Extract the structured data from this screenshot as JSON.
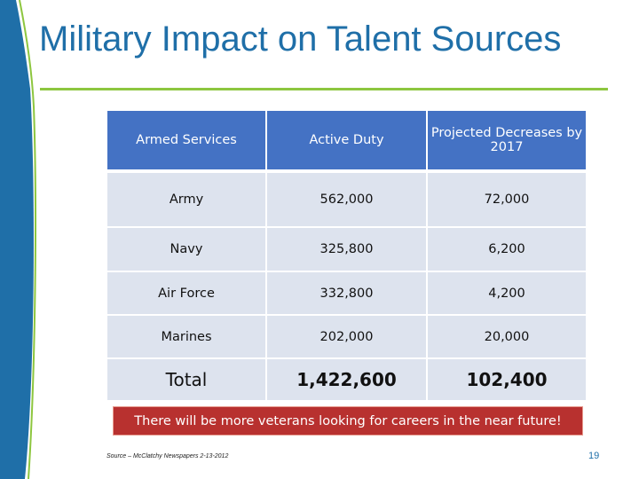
{
  "slide": {
    "title": "Military Impact on Talent Sources",
    "banner": "There will be more veterans looking for careers in the near future!",
    "source": "Source – McClatchy Newspapers 2-13-2012",
    "page_number": "19"
  },
  "table": {
    "headers": [
      "Armed Services",
      "Active Duty",
      "Projected Decreases by 2017"
    ],
    "rows": [
      [
        "Army",
        "562,000",
        "72,000"
      ],
      [
        "Navy",
        "325,800",
        "6,200"
      ],
      [
        "Air Force",
        "332,800",
        "4,200"
      ],
      [
        "Marines",
        "202,000",
        "20,000"
      ]
    ],
    "total": [
      "Total",
      "1,422,600",
      "102,400"
    ]
  },
  "colors": {
    "title": "#1f6fa8",
    "header_fill": "#4472c4",
    "cell_fill": "#dde3ee",
    "rule": "#8dc63f",
    "banner": "#b8312f",
    "side_bar": "#1f6fa8"
  }
}
